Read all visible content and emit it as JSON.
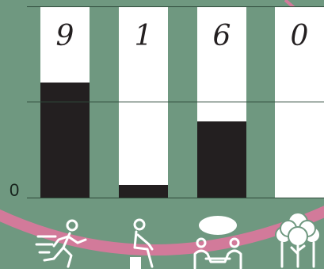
{
  "chart_data": {
    "type": "bar",
    "categories": [
      "running",
      "sitting",
      "meeting",
      "nature"
    ],
    "digit_labels": [
      "9",
      "1",
      "6",
      "0"
    ],
    "values": [
      9,
      1,
      6,
      0
    ],
    "ylim": [
      0,
      15
    ],
    "y_ticks": [
      "0"
    ],
    "grid": true
  },
  "colors": {
    "background": "#6f9880",
    "card": "#ffffff",
    "bar": "#231f20",
    "accent_ring": "#d27a9a"
  },
  "icons": [
    "running-person-icon",
    "sitting-person-icon",
    "meeting-people-icon",
    "trees-icon"
  ]
}
